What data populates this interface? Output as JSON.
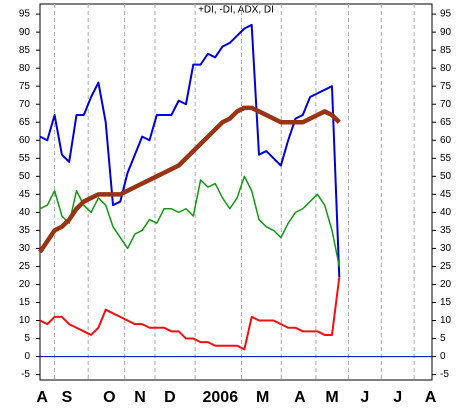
{
  "chart_data": {
    "type": "line",
    "title": "+DI, -DI, ADX, DI",
    "x": [
      0,
      1,
      2,
      3,
      4,
      5,
      6,
      7,
      8,
      9,
      10,
      11,
      12,
      13,
      14,
      15,
      16,
      17,
      18,
      19,
      20,
      21,
      22,
      23,
      24,
      25,
      26,
      27,
      28,
      29,
      30,
      31,
      32,
      33,
      34,
      35,
      36,
      37,
      38,
      39,
      40,
      41
    ],
    "series": [
      {
        "color": "#0000dd",
        "width": 2,
        "values": [
          61,
          60,
          67,
          56,
          54,
          67,
          67,
          72,
          76,
          65,
          42,
          43,
          51,
          56,
          61,
          60,
          67,
          67,
          67,
          71,
          70,
          81,
          81,
          84,
          83,
          86,
          87,
          89,
          91,
          92,
          56,
          57,
          55,
          53,
          60,
          66,
          67,
          72,
          73,
          74,
          75,
          22
        ]
      },
      {
        "color": "#119911",
        "width": 1.5,
        "values": [
          41,
          42,
          46,
          39,
          37,
          46,
          42,
          40,
          44,
          42,
          36,
          33,
          30,
          34,
          35,
          38,
          37,
          41,
          41,
          40,
          41,
          39,
          49,
          47,
          48,
          44,
          41,
          44,
          50,
          46,
          38,
          36,
          35,
          33,
          37,
          40,
          41,
          43,
          45,
          42,
          35,
          25
        ]
      },
      {
        "color": "#ee1111",
        "width": 2,
        "values": [
          10,
          9,
          11,
          11,
          9,
          8,
          7,
          6,
          8,
          13,
          12,
          11,
          10,
          9,
          9,
          8,
          8,
          8,
          7,
          7,
          5,
          5,
          4,
          4,
          3,
          3,
          3,
          3,
          2,
          11,
          10,
          10,
          10,
          9,
          8,
          8,
          7,
          7,
          7,
          6,
          6,
          22
        ]
      },
      {
        "color": "#993311",
        "width": 4.5,
        "values": [
          29,
          32,
          35,
          36,
          38,
          41,
          43,
          44,
          45,
          45,
          45,
          45,
          46,
          47,
          48,
          49,
          50,
          51,
          52,
          53,
          55,
          57,
          59,
          61,
          63,
          65,
          66,
          68,
          69,
          69,
          68,
          67,
          66,
          65,
          65,
          65,
          65,
          66,
          67,
          68,
          67,
          65
        ]
      }
    ],
    "xlim": [
      0,
      53.7
    ],
    "xticks": [
      {
        "value": 0.3,
        "label": "A"
      },
      {
        "value": 3.7,
        "label": "S"
      },
      {
        "value": 9.5,
        "label": "O"
      },
      {
        "value": 13.7,
        "label": "N"
      },
      {
        "value": 17.8,
        "label": "D"
      },
      {
        "value": 24.7,
        "label": "2006"
      },
      {
        "value": 30.5,
        "label": "M"
      },
      {
        "value": 35.6,
        "label": "A"
      },
      {
        "value": 40,
        "label": "M"
      },
      {
        "value": 44.5,
        "label": "J"
      },
      {
        "value": 49,
        "label": "J"
      },
      {
        "value": 53.5,
        "label": "A"
      }
    ],
    "ylim": [
      -6.5,
      97.8
    ],
    "yticks": [
      -5,
      0,
      5,
      10,
      15,
      20,
      25,
      30,
      35,
      40,
      45,
      50,
      55,
      60,
      65,
      70,
      75,
      80,
      85,
      90,
      95
    ],
    "zero_line": 0,
    "grid": true
  }
}
